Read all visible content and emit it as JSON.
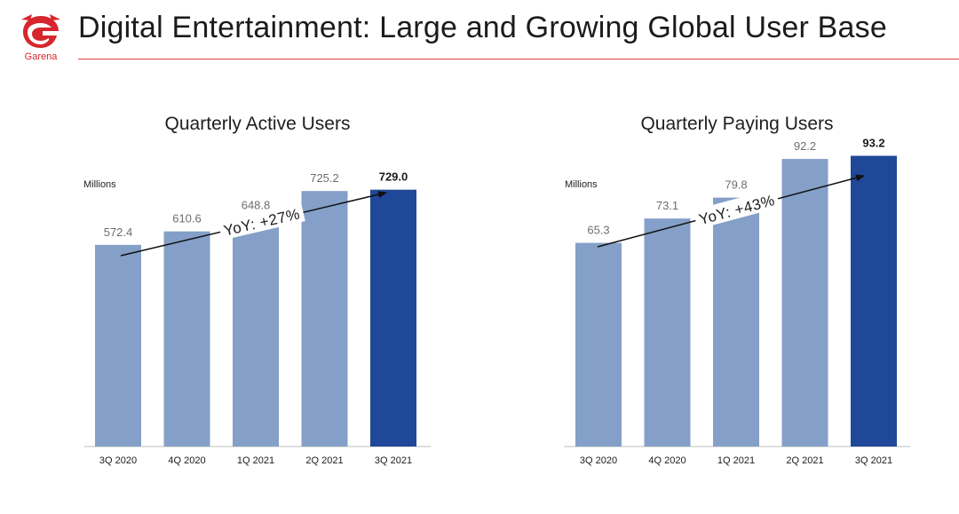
{
  "header": {
    "title": "Digital Entertainment: Large and Growing Global User Base",
    "logo_text": "Garena"
  },
  "colors": {
    "brand_red": "#d7262e",
    "bar_light": "#84a0c8",
    "bar_dark": "#1f4898"
  },
  "chart_data": [
    {
      "type": "bar",
      "title": "Quarterly Active Users",
      "unit_label": "Millions",
      "categories": [
        "3Q 2020",
        "4Q 2020",
        "1Q 2021",
        "2Q 2021",
        "3Q 2021"
      ],
      "values": [
        572.4,
        610.6,
        648.8,
        725.2,
        729.0
      ],
      "value_labels": [
        "572.4",
        "610.6",
        "648.8",
        "725.2",
        "729.0"
      ],
      "highlight_index": 4,
      "annotation": "YoY: +27%",
      "ylim": [
        0,
        965
      ],
      "grid": false
    },
    {
      "type": "bar",
      "title": "Quarterly Paying Users",
      "unit_label": "Millions",
      "categories": [
        "3Q 2020",
        "4Q 2020",
        "1Q 2021",
        "2Q 2021",
        "3Q 2021"
      ],
      "values": [
        65.3,
        73.1,
        79.8,
        92.2,
        93.2
      ],
      "value_labels": [
        "65.3",
        "73.1",
        "79.8",
        "92.2",
        "93.2"
      ],
      "highlight_index": 4,
      "annotation": "YoY: +43%",
      "ylim": [
        0,
        109
      ],
      "grid": false
    }
  ]
}
